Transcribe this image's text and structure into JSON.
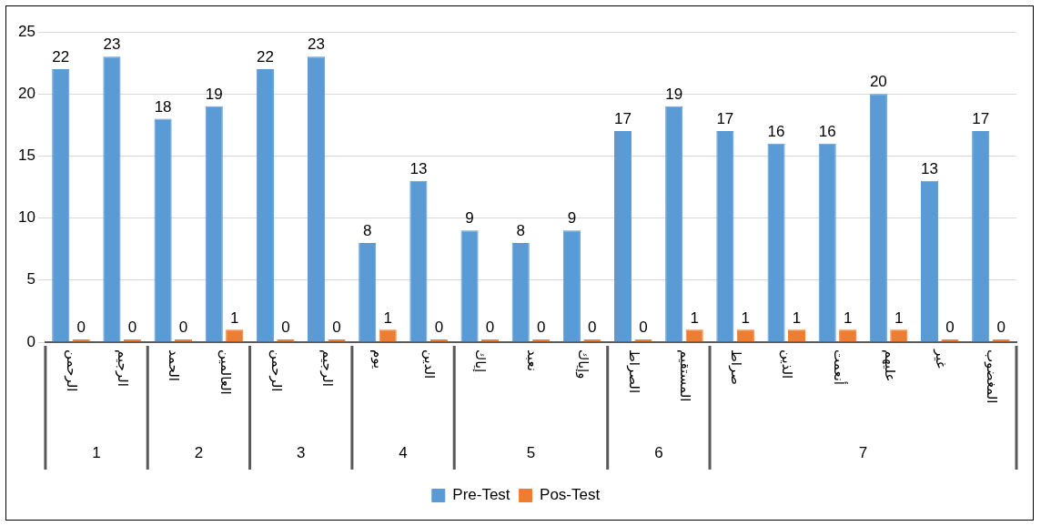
{
  "chart_data": {
    "type": "bar",
    "categories": [
      "الرحمن",
      "الرجيم",
      "الحمد",
      "العالمين",
      "الرحمن",
      "الرجيم",
      "يوم",
      "الدين",
      "إياك",
      "نعبد",
      "وإياك",
      "الصراط",
      "المستقيم",
      "صراط",
      "الذين",
      "أنعمت",
      "عليهم",
      "غير",
      "المغضوب"
    ],
    "series": [
      {
        "name": "Pre-Test",
        "color": "#5b9bd5",
        "values": [
          22,
          23,
          18,
          19,
          22,
          23,
          8,
          13,
          9,
          8,
          9,
          17,
          19,
          17,
          16,
          16,
          20,
          13,
          17
        ]
      },
      {
        "name": "Pos-Test",
        "color": "#ed7d31",
        "values": [
          0,
          0,
          0,
          1,
          0,
          0,
          1,
          0,
          0,
          0,
          0,
          0,
          1,
          1,
          1,
          1,
          1,
          0,
          0
        ]
      }
    ],
    "annotations": [
      "1",
      "2",
      "3",
      "4",
      "5",
      "6",
      "7"
    ],
    "ylim": [
      0,
      25
    ],
    "yticks": [
      0,
      5,
      10,
      15,
      20,
      25
    ],
    "grid": "y",
    "legend": "bottom",
    "data_labels": true
  }
}
